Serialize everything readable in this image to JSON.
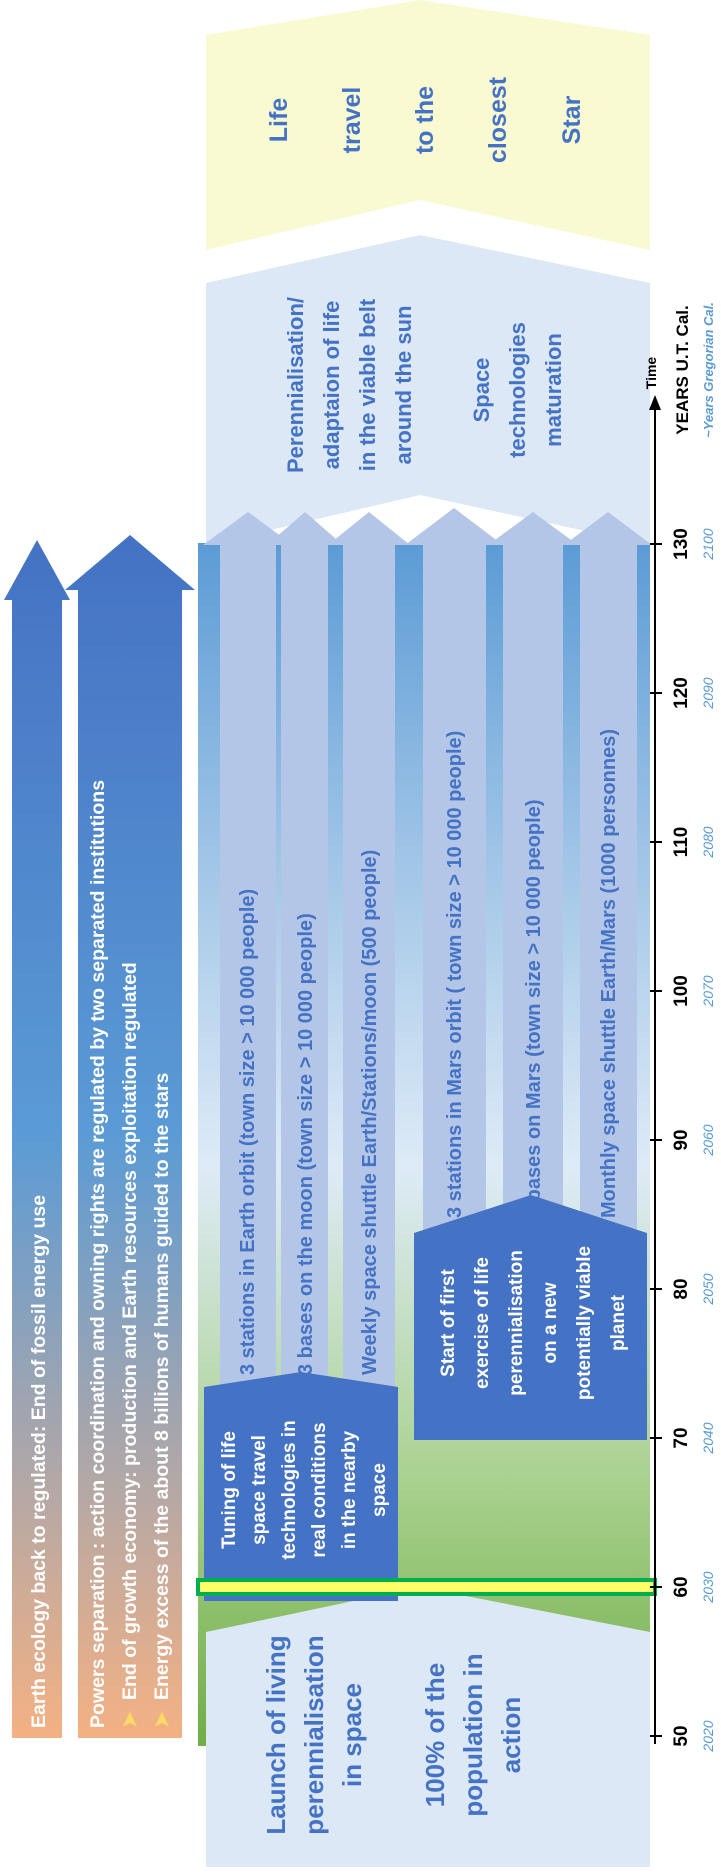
{
  "top_arrows": {
    "ecology": "Earth ecology back to regulated: End of fossil energy use",
    "powers_line1": "Powers separation : action coordination and owning rights are regulated by two separated institutions",
    "bullet1": "End of growth economy: production and Earth resources exploitation regulated",
    "bullet2": "Energy excess of the about 8 billions of humans guided to the stars"
  },
  "bottom_phase": {
    "line1": "Launch of living",
    "line2": "perennialisation",
    "line3": "in space",
    "line4": "100% of the",
    "line5": "population in",
    "line6": "action"
  },
  "tuning_box": {
    "lines": [
      "Tuning of life",
      "space travel",
      "technologies in",
      "real conditions",
      "in the nearby",
      "space"
    ]
  },
  "start_box": {
    "lines": [
      "Start of first",
      "exercise of life",
      "perennialisation",
      "on a new",
      "potentially viable",
      "planet"
    ]
  },
  "space_arrows": {
    "earth_orbit": "3 stations in Earth orbit (town size  > 10 000 people)",
    "moon_bases": "3 bases on the moon (town size > 10 000 people)",
    "moon_shuttle": "Weekly space shuttle Earth/Stations/moon (500 people)",
    "mars_orbit": "3 stations in Mars orbit ( town size >  10 000 people)",
    "mars_bases": "3 bases on Mars (town size > 10 000 people)",
    "mars_shuttle": "Monthly space shuttle Earth/Mars (1000 personnes)"
  },
  "upper_phase": {
    "lines1": [
      "Perennialisation/",
      "adaptaion of life",
      "in the viable belt",
      "around the sun"
    ],
    "lines2": [
      "Space",
      "technologies",
      "maturation"
    ]
  },
  "top_phase": {
    "words": [
      "Life",
      "travel",
      "to the",
      "closest",
      "Star"
    ]
  },
  "axis": {
    "time_label": "Time",
    "years_label": "YEARS U.T. Cal.",
    "greg_label": "~Years Gregorian Cal.",
    "ticks": [
      {
        "ut": "50",
        "greg": "2020"
      },
      {
        "ut": "60",
        "greg": "2030"
      },
      {
        "ut": "70",
        "greg": "2040"
      },
      {
        "ut": "80",
        "greg": "2050"
      },
      {
        "ut": "90",
        "greg": "2060"
      },
      {
        "ut": "100",
        "greg": "2070"
      },
      {
        "ut": "110",
        "greg": "2080"
      },
      {
        "ut": "120",
        "greg": "2090"
      },
      {
        "ut": "130",
        "greg": "2100"
      }
    ],
    "current_year": 60
  },
  "colors": {
    "gradient_bottom": "#70ad47",
    "gradient_top": "#5b9bd5",
    "box_blue": "#4472c4",
    "arrow_light": "#b4c6e7",
    "phase_pale": "#dce8f5",
    "star_pale": "#fafad2",
    "peach": "#f4b183",
    "marker_green": "#00b050",
    "marker_yellow": "#ffff66",
    "greg_text": "#5b9bd5"
  }
}
